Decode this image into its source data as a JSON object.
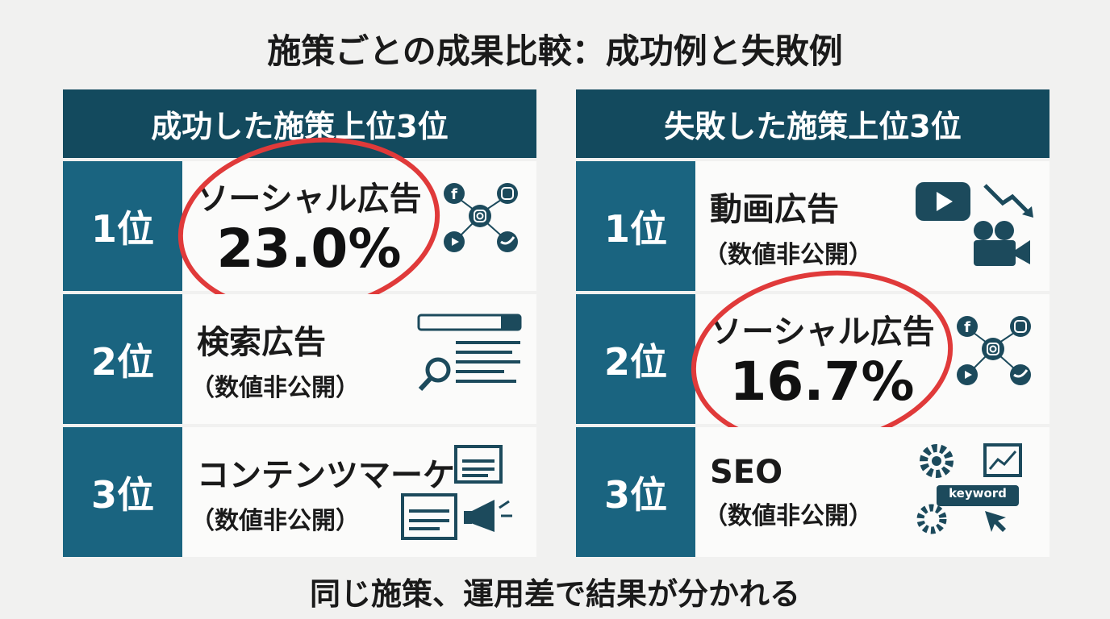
{
  "title": "施策ごとの成果比較：成功例と失敗例",
  "panels": [
    {
      "header": "成功した施策上位3位",
      "rows": [
        {
          "rank": "1位",
          "name": "ソーシャル広告",
          "value": "23.0%"
        },
        {
          "rank": "2位",
          "name": "検索広告",
          "note": "（数値非公開）"
        },
        {
          "rank": "3位",
          "name": "コンテンツマーケ",
          "note": "（数値非公開）"
        }
      ]
    },
    {
      "header": "失敗した施策上位3位",
      "rows": [
        {
          "rank": "1位",
          "name": "動画広告",
          "note": "（数値非公開）"
        },
        {
          "rank": "2位",
          "name": "ソーシャル広告",
          "value": "16.7%"
        },
        {
          "rank": "3位",
          "name": "SEO",
          "note": "（数値非公開）",
          "icon_label": "keyword"
        }
      ]
    }
  ],
  "footer": "同じ施策、運用差で結果が分かれる"
}
